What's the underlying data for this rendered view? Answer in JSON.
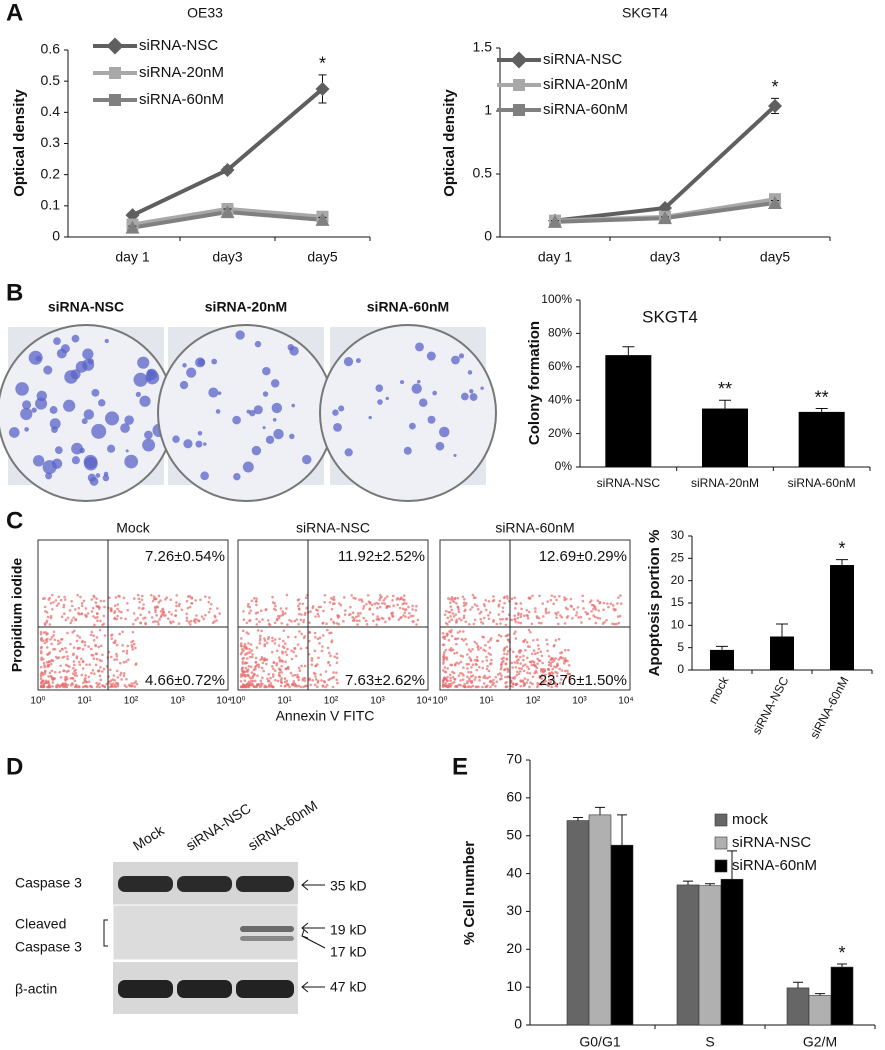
{
  "panel_labels": [
    "A",
    "B",
    "C",
    "D",
    "E"
  ],
  "chart_data": [
    {
      "type": "line",
      "title": "OE33",
      "ylabel": "Optical density",
      "categories": [
        "day 1",
        "day3",
        "day5"
      ],
      "series": [
        {
          "name": "siRNA-NSC",
          "color": "#5f5f5f",
          "marker": "diamond",
          "values": [
            0.07,
            0.215,
            0.475
          ],
          "errors": [
            0.005,
            0.01,
            0.045
          ]
        },
        {
          "name": "siRNA-20nM",
          "color": "#a8a8a8",
          "marker": "square",
          "values": [
            0.04,
            0.09,
            0.065
          ],
          "errors": [
            0.005,
            0.01,
            0.01
          ]
        },
        {
          "name": "siRNA-60nM",
          "color": "#808080",
          "marker": "triangle",
          "values": [
            0.03,
            0.08,
            0.055
          ],
          "errors": [
            0.005,
            0.01,
            0.008
          ]
        }
      ],
      "annotations": [
        null,
        null,
        "*"
      ],
      "ylim": [
        0,
        0.6
      ],
      "yticks": [
        0,
        0.1,
        0.2,
        0.3,
        0.4,
        0.5,
        0.6
      ]
    },
    {
      "type": "line",
      "title": "SKGT4",
      "ylabel": "Optical density",
      "categories": [
        "day 1",
        "day3",
        "day5"
      ],
      "series": [
        {
          "name": "siRNA-NSC",
          "color": "#5f5f5f",
          "marker": "diamond",
          "values": [
            0.13,
            0.23,
            1.04
          ],
          "errors": [
            0.01,
            0.01,
            0.06
          ]
        },
        {
          "name": "siRNA-20nM",
          "color": "#a8a8a8",
          "marker": "square",
          "values": [
            0.13,
            0.16,
            0.3
          ],
          "errors": [
            0.01,
            0.01,
            0.03
          ]
        },
        {
          "name": "siRNA-60nM",
          "color": "#808080",
          "marker": "triangle",
          "values": [
            0.12,
            0.15,
            0.27
          ],
          "errors": [
            0.01,
            0.01,
            0.02
          ]
        }
      ],
      "annotations": [
        null,
        null,
        "*"
      ],
      "ylim": [
        0,
        1.5
      ],
      "yticks": [
        0,
        0.5,
        1,
        1.5
      ]
    },
    {
      "type": "bar",
      "title": "SKGT4",
      "ylabel": "Colony formation",
      "color": "#000000",
      "categories": [
        "siRNA-NSC",
        "siRNA-20nM",
        "siRNA-60nM"
      ],
      "values": [
        67,
        35,
        33
      ],
      "errors": [
        5,
        5,
        2
      ],
      "annotations": [
        null,
        "**",
        "**"
      ],
      "ylim": [
        0,
        100
      ],
      "yticks": [
        {
          "value": 0,
          "label": "0%"
        },
        {
          "value": 20,
          "label": "20%"
        },
        {
          "value": 40,
          "label": "40%"
        },
        {
          "value": 60,
          "label": "60%"
        },
        {
          "value": 80,
          "label": "80%"
        },
        {
          "value": 100,
          "label": "100%"
        }
      ]
    },
    {
      "type": "bar",
      "ylabel": "Apoptosis portion %",
      "color": "#000000",
      "categories": [
        "mock",
        "siRNA-NSC",
        "siRNA-60nM"
      ],
      "values": [
        4.5,
        7.5,
        23.5
      ],
      "errors": [
        0.8,
        2.8,
        1.2
      ],
      "annotations": [
        null,
        null,
        "*"
      ],
      "ylim": [
        0,
        30
      ],
      "yticks": [
        0,
        5,
        10,
        15,
        20,
        25,
        30
      ]
    },
    {
      "type": "bar",
      "ylabel": "% Cell number",
      "categories": [
        "G0/G1",
        "S",
        "G2/M"
      ],
      "series": [
        {
          "name": "mock",
          "color": "#666666",
          "values": [
            54,
            37,
            9.8
          ],
          "errors": [
            0.8,
            1,
            1.5
          ]
        },
        {
          "name": "siRNA-NSC",
          "color": "#b0b0b0",
          "values": [
            55.5,
            36.8,
            7.8
          ],
          "errors": [
            2,
            0.5,
            0.5
          ]
        },
        {
          "name": "siRNA-60nM",
          "color": "#000000",
          "values": [
            47.5,
            38.5,
            15.3
          ],
          "errors": [
            8,
            7.5,
            0.8
          ]
        }
      ],
      "annotations": [
        null,
        null,
        "*"
      ],
      "ylim": [
        0,
        70
      ],
      "yticks": [
        0,
        10,
        20,
        30,
        40,
        50,
        60,
        70
      ]
    }
  ],
  "colony": {
    "labels": [
      "siRNA-NSC",
      "siRNA-20nM",
      "siRNA-60nM"
    ]
  },
  "flow": {
    "xlabel": "Annexin V FITC",
    "ylabel": "Propidium iodide",
    "ticks": [
      "10⁰",
      "10¹",
      "10²",
      "10³",
      "10⁴"
    ],
    "panels": [
      {
        "title": "Mock",
        "upper": "7.26±0.54%",
        "lower": "4.66±0.72%"
      },
      {
        "title": "siRNA-NSC",
        "upper": "11.92±2.52%",
        "lower": "7.63±2.62%"
      },
      {
        "title": "siRNA-60nM",
        "upper": "12.69±0.29%",
        "lower": "23.76±1.50%"
      }
    ]
  },
  "western": {
    "lanes": [
      "Mock",
      "siRNA-NSC",
      "siRNA-60nM"
    ],
    "caspase": "Caspase 3",
    "cleaved": [
      "Cleaved",
      "Caspase 3"
    ],
    "actin": "β-actin",
    "sizes": [
      "35 kD",
      "19 kD",
      "17 kD",
      "47 kD"
    ]
  }
}
